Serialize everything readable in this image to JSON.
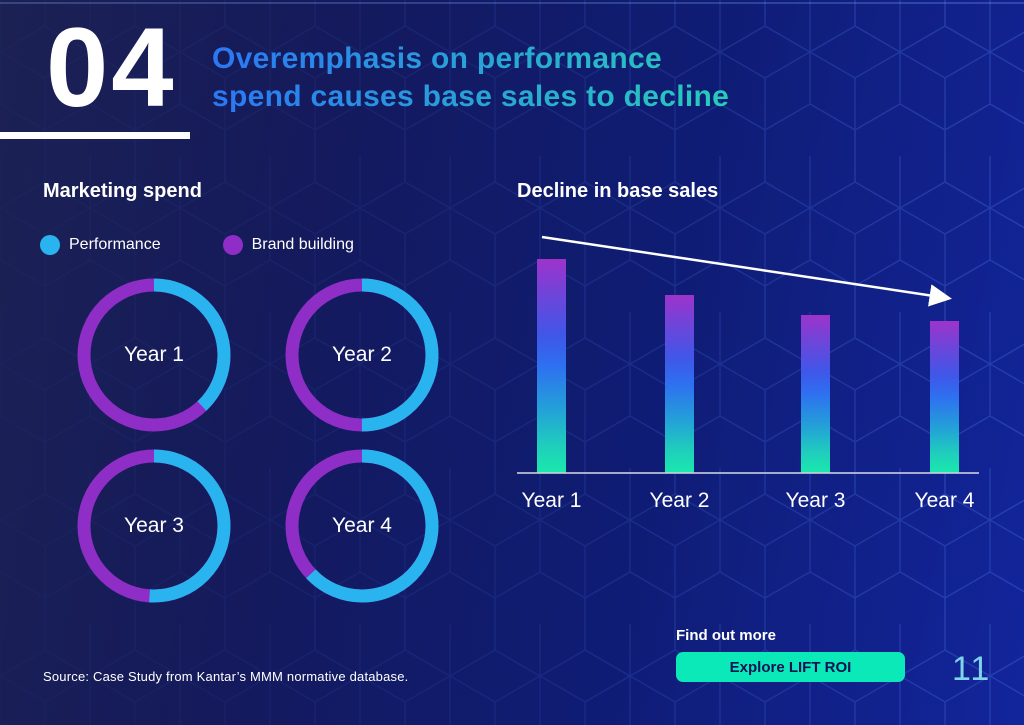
{
  "header": {
    "number": "04",
    "title_line1": "Overemphasis on performance",
    "title_line2": "spend causes base sales to decline"
  },
  "footer": {
    "source": "Source: Case Study from Kantar’s MMM normative database.",
    "find_out_more": "Find out more",
    "cta_label": "Explore LIFT ROI",
    "page_number": "11"
  },
  "colors": {
    "performance": "#29b4f0",
    "brand_building": "#8e2ec6",
    "title_gradient_start": "#2b77f5",
    "title_gradient_end": "#27cdb9",
    "cta_background": "#0ce9b8",
    "cta_text": "#0a1254",
    "page_number": "#7fd3ea",
    "bar_gradient": [
      "#9d33cb",
      "#2e70f0",
      "#19e9ac"
    ],
    "trend_arrow": "#ffffff"
  },
  "chart_data": [
    {
      "type": "pie",
      "subtype": "donut-grid",
      "title": "Marketing spend",
      "legend": [
        "Performance",
        "Brand building"
      ],
      "legend_position": "top",
      "units": "percent of ring (estimated from arc angles)",
      "donuts": [
        {
          "label": "Year 1",
          "performance": 38,
          "brand_building": 62
        },
        {
          "label": "Year 2",
          "performance": 50,
          "brand_building": 50
        },
        {
          "label": "Year 3",
          "performance": 51,
          "brand_building": 49
        },
        {
          "label": "Year 4",
          "performance": 63,
          "brand_building": 37
        }
      ]
    },
    {
      "type": "bar",
      "title": "Decline in base sales",
      "categories": [
        "Year 1",
        "Year 2",
        "Year 3",
        "Year 4"
      ],
      "values": [
        100,
        83,
        74,
        71
      ],
      "ylim": [
        0,
        100
      ],
      "grid": false,
      "note": "no numeric axis shown; values are relative bar heights indexed to Year 1 = 100",
      "annotations": [
        "white downward trend arrow from above Year 1 bar to above Year 4 bar"
      ]
    }
  ]
}
